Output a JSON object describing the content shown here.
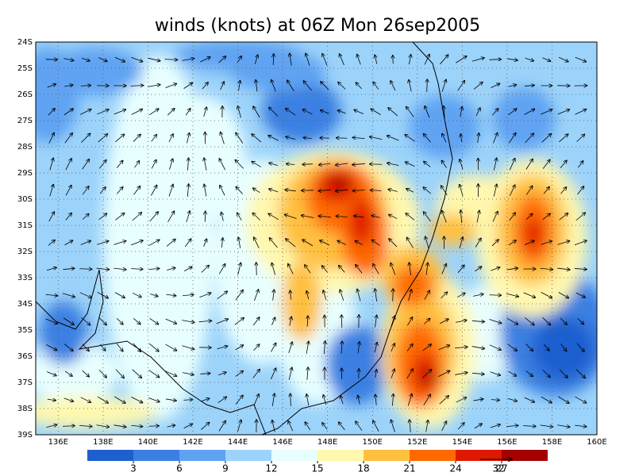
{
  "title": "winds (knots) at 06Z Mon 26sep2005",
  "map": {
    "lat_labels": [
      "24S",
      "25S",
      "26S",
      "27S",
      "28S",
      "29S",
      "30S",
      "31S",
      "32S",
      "33S",
      "34S",
      "35S",
      "36S",
      "37S",
      "38S",
      "39S"
    ],
    "lon_labels": [
      "136E",
      "138E",
      "140E",
      "142E",
      "144E",
      "146E",
      "148E",
      "150E",
      "152E",
      "154E",
      "156E",
      "158E",
      "160E"
    ]
  },
  "colorbar": {
    "levels": [
      3,
      6,
      9,
      12,
      15,
      18,
      21,
      24,
      27
    ],
    "colors": [
      "#1e5fd0",
      "#3a80e2",
      "#5ea3f2",
      "#9cd3fa",
      "#e8ffff",
      "#fff8ae",
      "#ffc040",
      "#ff6a00",
      "#e01800",
      "#a50000"
    ]
  },
  "reference_vector": {
    "label": "32"
  }
}
